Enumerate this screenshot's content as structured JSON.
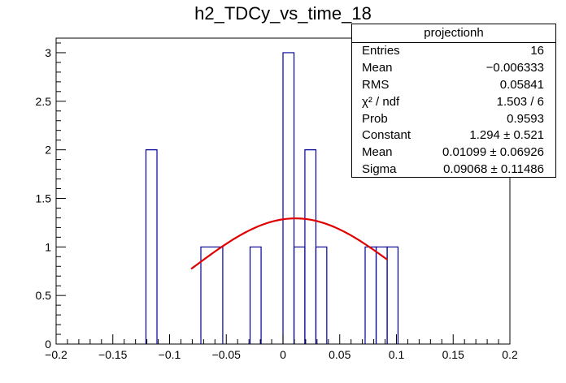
{
  "chart_data": {
    "type": "bar",
    "title": "h2_TDCy_vs_time_18",
    "xlabel": "",
    "ylabel": "",
    "xlim": [
      -0.2,
      0.2
    ],
    "ylim": [
      0,
      3.15
    ],
    "bin_width": 0.00966,
    "bins": [
      {
        "x_low": -0.1208,
        "x_high": -0.1111,
        "count": 2
      },
      {
        "x_low": -0.0724,
        "x_high": -0.0531,
        "count": 1
      },
      {
        "x_low": -0.029,
        "x_high": -0.0193,
        "count": 1
      },
      {
        "x_low": 0.0,
        "x_high": 0.0097,
        "count": 3
      },
      {
        "x_low": 0.0097,
        "x_high": 0.0193,
        "count": 1
      },
      {
        "x_low": 0.0193,
        "x_high": 0.029,
        "count": 2
      },
      {
        "x_low": 0.029,
        "x_high": 0.0386,
        "count": 1
      },
      {
        "x_low": 0.0724,
        "x_high": 0.0821,
        "count": 1
      },
      {
        "x_low": 0.0821,
        "x_high": 0.0918,
        "count": 1
      },
      {
        "x_low": 0.0918,
        "x_high": 0.1014,
        "count": 1
      }
    ],
    "fit": {
      "function": "gaus",
      "constant": 1.294,
      "mean": 0.01099,
      "sigma": 0.09068,
      "x_range": [
        -0.081,
        0.092
      ],
      "color": "#e00000"
    },
    "x_ticks": [
      "-0.2",
      "-0.15",
      "-0.1",
      "-0.05",
      "0",
      "0.05",
      "0.1",
      "0.15",
      "0.2"
    ],
    "x_tick_values": [
      -0.2,
      -0.15,
      -0.1,
      -0.05,
      0,
      0.05,
      0.1,
      0.15,
      0.2
    ],
    "y_ticks": [
      "0",
      "0.5",
      "1",
      "1.5",
      "2",
      "2.5",
      "3"
    ],
    "y_tick_values": [
      0,
      0.5,
      1,
      1.5,
      2,
      2.5,
      3
    ],
    "histogram_color": "#000099",
    "axis_color": "#000000"
  },
  "stats": {
    "header": "projectionh",
    "rows": [
      {
        "key": "Entries",
        "value": "16"
      },
      {
        "key": "Mean",
        "value": "−0.006333"
      },
      {
        "key": "RMS",
        "value": "0.05841"
      },
      {
        "key": "χ² / ndf",
        "value": "1.503 / 6"
      },
      {
        "key": "Prob",
        "value": "0.9593"
      },
      {
        "key": "Constant",
        "value": "1.294 ± 0.521"
      },
      {
        "key": "Mean",
        "value": "0.01099 ± 0.06926"
      },
      {
        "key": "Sigma",
        "value": "0.09068 ± 0.11486"
      }
    ]
  }
}
